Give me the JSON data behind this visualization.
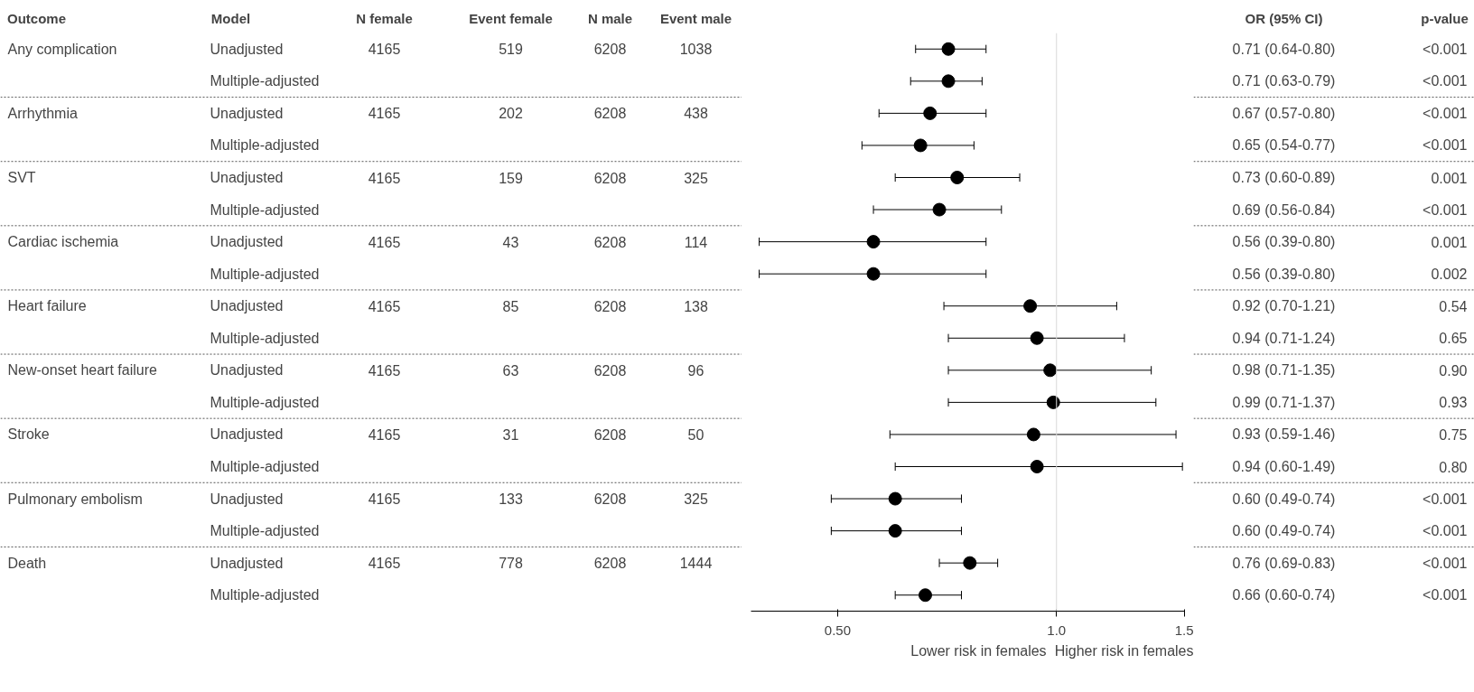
{
  "chart_data": [
    {
      "type": "other",
      "categories": [
        "Outcome",
        "Model",
        "N female",
        "Event female",
        "N male",
        "Event male"
      ],
      "annotations": [
        "Any complication",
        "Unadjusted",
        "4165",
        "519",
        "6208",
        "1038",
        "Multiple-adjusted",
        "Arrhythmia",
        "Unadjusted",
        "4165",
        "202",
        "6208",
        "438",
        "Multiple-adjusted",
        "SVT",
        "Unadjusted",
        "4165",
        "159",
        "6208",
        "325",
        "Multiple-adjusted",
        "Cardiac ischemia",
        "Unadjusted",
        "4165",
        "43",
        "6208",
        "114",
        "Multiple-adjusted",
        "Heart failure",
        "Unadjusted",
        "4165",
        "85",
        "6208",
        "138",
        "Multiple-adjusted",
        "New-onset heart failure",
        "Unadjusted",
        "4165",
        "63",
        "6208",
        "96",
        "Multiple-adjusted",
        "Stroke",
        "Unadjusted",
        "4165",
        "31",
        "6208",
        "50",
        "Multiple-adjusted",
        "Pulmonary embolism",
        "Unadjusted",
        "4165",
        "133",
        "6208",
        "325",
        "Multiple-adjusted",
        "Death",
        "Unadjusted",
        "4165",
        "778",
        "6208",
        "1444",
        "Multiple-adjusted"
      ]
    },
    {
      "type": "scatter",
      "orientation": "horizontal",
      "log": "x",
      "marker": "circle",
      "grid": false,
      "legend": false,
      "categories": [
        null,
        null,
        null,
        null,
        null,
        null,
        null,
        null,
        null,
        null,
        null,
        null,
        null,
        null,
        null,
        null,
        null,
        null
      ],
      "values": [
        0.71,
        0.71,
        0.67,
        0.65,
        0.73,
        0.69,
        0.56,
        0.56,
        0.92,
        0.94,
        0.98,
        0.99,
        0.93,
        0.94,
        0.6,
        0.6,
        0.76,
        0.66
      ],
      "errors": [
        [
          0.64,
          0.8
        ],
        [
          0.63,
          0.79
        ],
        [
          0.57,
          0.8
        ],
        [
          0.54,
          0.77
        ],
        [
          0.6,
          0.89
        ],
        [
          0.56,
          0.84
        ],
        [
          0.39,
          0.8
        ],
        [
          0.39,
          0.8
        ],
        [
          0.7,
          1.21
        ],
        [
          0.71,
          1.24
        ],
        [
          0.71,
          1.35
        ],
        [
          0.71,
          1.37
        ],
        [
          0.59,
          1.46
        ],
        [
          0.6,
          1.49
        ],
        [
          0.49,
          0.74
        ],
        [
          0.49,
          0.74
        ],
        [
          0.69,
          0.83
        ],
        [
          0.6,
          0.74
        ]
      ],
      "color": "#000000",
      "xlim": [
        0.38,
        1.5
      ],
      "xticks": [
        {
          "value": 0.5,
          "label": "0.50"
        },
        {
          "value": 1.0,
          "label": "1.0"
        },
        1.5
      ],
      "ref_lines": [
        {
          "axis": "x",
          "value": 1.0,
          "color": "#d9d9d9"
        }
      ],
      "annotations": [
        "Lower risk in females",
        "Higher risk in females"
      ]
    },
    {
      "type": "other",
      "categories": [
        "OR (95% CI)",
        "p-value"
      ],
      "annotations": [
        "0.71 (0.64-0.80)",
        "<0.001",
        "0.71 (0.63-0.79)",
        "<0.001",
        "0.67 (0.57-0.80)",
        "<0.001",
        "0.65 (0.54-0.77)",
        "<0.001",
        "0.73 (0.60-0.89)",
        "0.001",
        "0.69 (0.56-0.84)",
        "<0.001",
        "0.56 (0.39-0.80)",
        "0.001",
        "0.56 (0.39-0.80)",
        "0.002",
        "0.92 (0.70-1.21)",
        "0.54",
        "0.94 (0.71-1.24)",
        "0.65",
        "0.98 (0.71-1.35)",
        "0.90",
        "0.99 (0.71-1.37)",
        "0.93",
        "0.93 (0.59-1.46)",
        "0.75",
        "0.94 (0.60-1.49)",
        "0.80",
        "0.60 (0.49-0.74)",
        "<0.001",
        "0.60 (0.49-0.74)",
        "<0.001",
        "0.76 (0.69-0.83)",
        "<0.001",
        "0.66 (0.60-0.74)",
        "<0.001"
      ]
    }
  ]
}
